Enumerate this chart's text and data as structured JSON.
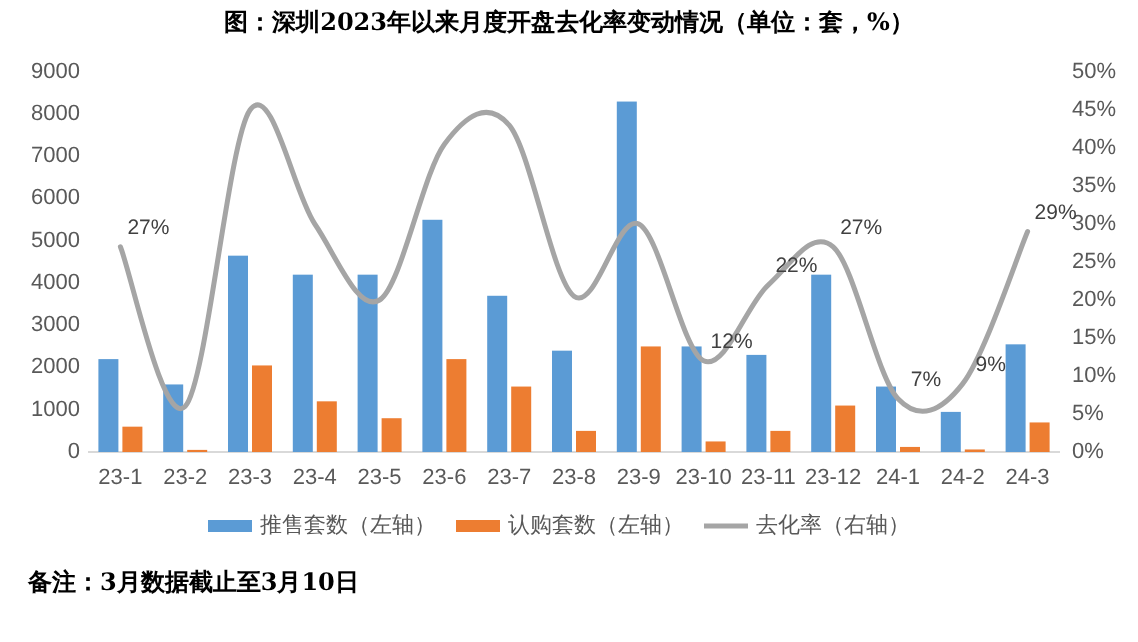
{
  "chart_data": {
    "type": "bar",
    "title": "图：深圳2023年以来月度开盘去化率变动情况（单位：套，%）",
    "categories": [
      "23-1",
      "23-2",
      "23-3",
      "23-4",
      "23-5",
      "23-6",
      "23-7",
      "23-8",
      "23-9",
      "23-10",
      "23-11",
      "23-12",
      "24-1",
      "24-2",
      "24-3"
    ],
    "series": [
      {
        "name": "推售套数（左轴）",
        "color": "#5b9bd5",
        "values": [
          2200,
          1600,
          4650,
          4200,
          4200,
          5500,
          3700,
          2400,
          8300,
          2500,
          2300,
          4200,
          1550,
          950,
          2550
        ]
      },
      {
        "name": "认购套数（左轴）",
        "color": "#ed7d31",
        "values": [
          600,
          50,
          2050,
          1200,
          800,
          2200,
          1550,
          500,
          2500,
          250,
          500,
          1100,
          120,
          60,
          700
        ]
      },
      {
        "name": "去化率（右轴）",
        "type": "line",
        "axis": "y2",
        "color": "#a5a5a5",
        "values": [
          27,
          6,
          45,
          30,
          20,
          40.5,
          43,
          20.5,
          30,
          12,
          22,
          27,
          7,
          9,
          29
        ],
        "value_labels": [
          "27%",
          null,
          null,
          null,
          null,
          null,
          null,
          null,
          null,
          "12%",
          "22%",
          "27%",
          "7%",
          "9%",
          "29%"
        ]
      }
    ],
    "ylim": [
      0,
      9000
    ],
    "yticks": [
      0,
      1000,
      2000,
      3000,
      4000,
      5000,
      6000,
      7000,
      8000,
      9000
    ],
    "y2lim": [
      0,
      50
    ],
    "y2ticks": [
      {
        "value": 0,
        "label": "0%"
      },
      {
        "value": 5,
        "label": "5%"
      },
      {
        "value": 10,
        "label": "10%"
      },
      {
        "value": 15,
        "label": "15%"
      },
      {
        "value": 20,
        "label": "20%"
      },
      {
        "value": 25,
        "label": "25%"
      },
      {
        "value": 30,
        "label": "30%"
      },
      {
        "value": 35,
        "label": "35%"
      },
      {
        "value": 40,
        "label": "40%"
      },
      {
        "value": 45,
        "label": "45%"
      },
      {
        "value": 50,
        "label": "50%"
      }
    ],
    "legend": "bottom",
    "marker": "none",
    "line_style": "solid",
    "annotations": [
      "备注：3月数据截止至3月10日"
    ]
  }
}
